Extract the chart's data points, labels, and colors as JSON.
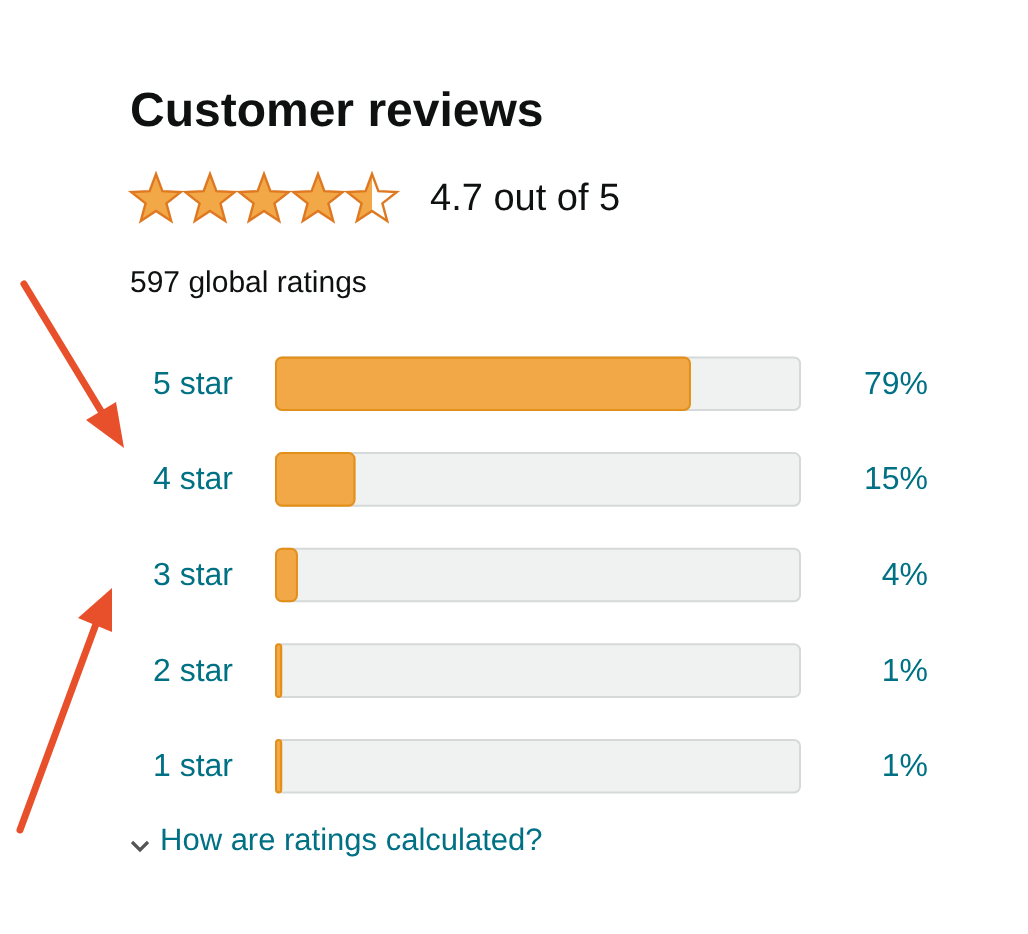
{
  "chart_data": {
    "type": "bar",
    "orientation": "horizontal",
    "title": "Customer reviews",
    "subtitle": "597 global ratings",
    "categories": [
      "5 star",
      "4 star",
      "3 star",
      "2 star",
      "1 star"
    ],
    "values": [
      79,
      15,
      4,
      1,
      1
    ],
    "value_labels": [
      "79%",
      "15%",
      "4%",
      "1%",
      "1%"
    ],
    "color": "#f3a847",
    "xlim": [
      0,
      100
    ],
    "annotations": [
      "4.7 out of 5",
      "How are ratings calculated?"
    ]
  }
}
